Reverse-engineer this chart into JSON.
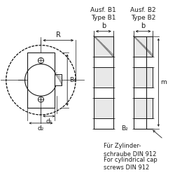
{
  "bg_color": "#ffffff",
  "line_color": "#1a1a1a",
  "hatch_color": "#888888",
  "title_b1": "Ausf. B1\nType B1",
  "title_b2": "Ausf. B2\nType B2",
  "label_R": "R",
  "label_d1": "d₁",
  "label_d2": "d₂",
  "label_b1_dim": "B₁",
  "label_b2_dim": "B₂",
  "label_b": "b",
  "label_m": "m",
  "footer_line1": "Für Zylinder-",
  "footer_line2": "schraube DIN 912",
  "footer_line3": "For cylindrical cap",
  "footer_line4": "screws DIN 912"
}
